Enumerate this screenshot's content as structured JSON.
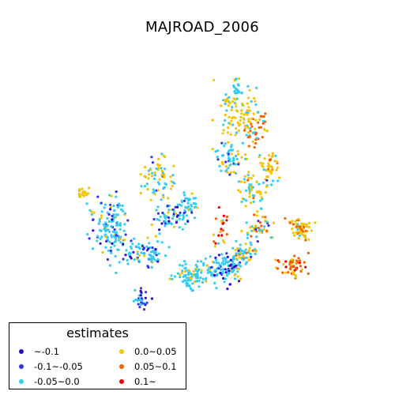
{
  "title": "MAJROAD_2006",
  "legend": {
    "title": "estimates",
    "items": [
      {
        "label": "~-0.1",
        "color": "#2a0ac8"
      },
      {
        "label": "-0.1~-0.05",
        "color": "#3333ee"
      },
      {
        "label": "-0.05~0.0",
        "color": "#33ccf5"
      },
      {
        "label": "0.0~0.05",
        "color": "#f5c400"
      },
      {
        "label": "0.05~0.1",
        "color": "#f26000"
      },
      {
        "label": "0.1~",
        "color": "#ee0000"
      }
    ]
  }
}
